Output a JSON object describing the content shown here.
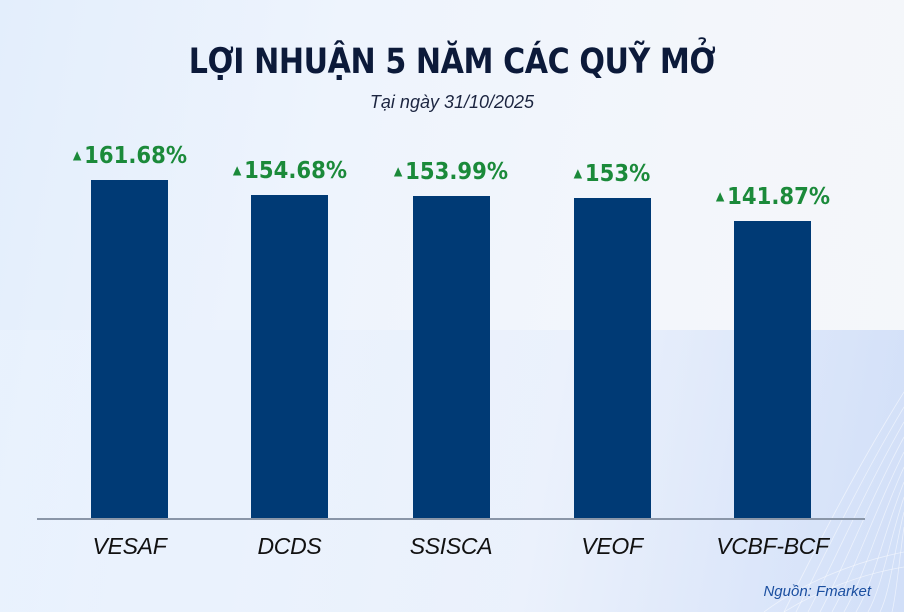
{
  "header": {
    "title": "LỢI NHUẬN 5 NĂM CÁC QUỸ MỞ",
    "subtitle": "Tại ngày 31/10/2025"
  },
  "footer": {
    "source": "Nguồn: Fmarket"
  },
  "icons": {
    "up_arrow": "▲"
  },
  "colors": {
    "bar": "#003a75",
    "value_label": "#1b8a3a",
    "title": "#0c1a3a",
    "source": "#1b4fa0"
  },
  "bars": [
    {
      "category": "VESAF",
      "label": "161.68%"
    },
    {
      "category": "DCDS",
      "label": "154.68%"
    },
    {
      "category": "SSISCA",
      "label": "153.99%"
    },
    {
      "category": "VEOF",
      "label": "153%"
    },
    {
      "category": "VCBF-BCF",
      "label": "141.87%"
    }
  ],
  "chart_data": {
    "type": "bar",
    "title": "LỢI NHUẬN 5 NĂM CÁC QUỸ MỞ",
    "subtitle": "Tại ngày 31/10/2025",
    "categories": [
      "VESAF",
      "DCDS",
      "SSISCA",
      "VEOF",
      "VCBF-BCF"
    ],
    "values": [
      161.68,
      154.68,
      153.99,
      153,
      141.87
    ],
    "value_labels": [
      "161.68%",
      "154.68%",
      "153.99%",
      "153%",
      "141.87%"
    ],
    "unit": "%",
    "xlabel": "",
    "ylabel": "",
    "y_axis_visible": false,
    "grid": false,
    "legend": null,
    "annotations": [
      "Nguồn: Fmarket"
    ]
  }
}
